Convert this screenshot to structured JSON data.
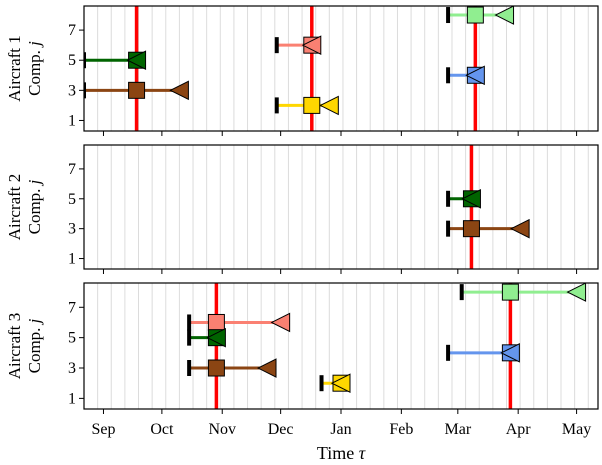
{
  "chart_data": {
    "type": "gantt-scatter",
    "xlabel": "Time τ",
    "x_ticks": [
      "Sep",
      "Oct",
      "Nov",
      "Dec",
      "Jan",
      "Feb",
      "Mar",
      "Apr",
      "May"
    ],
    "x_range": [
      "Aug 22",
      "May 12"
    ],
    "y_ticks": [
      1,
      3,
      5,
      7
    ],
    "y_range": [
      0.3,
      8.6
    ],
    "grid": "vertical-weekly",
    "colors": {
      "comp_2": "#ffd700",
      "comp_3": "#8b4513",
      "comp_4": "#6495ed",
      "comp_5": "#006400",
      "comp_6": "#fa8072",
      "comp_8": "#90ee90",
      "maintenance_line": "#ff0000"
    },
    "panels": [
      {
        "ylabel_line1": "Aircraft 1",
        "ylabel_line2": "Comp. j",
        "maintenance": [
          "Sep 18",
          "Dec 17",
          "Mar 10"
        ],
        "components": [
          {
            "j": 5,
            "start": "Aug 22",
            "replace": "Sep 18",
            "limit": "Sep 18"
          },
          {
            "j": 3,
            "start": "Aug 22",
            "replace": "Sep 18",
            "limit": "Oct 10"
          },
          {
            "j": 6,
            "start": "Nov 29",
            "replace": "Dec 17",
            "limit": "Dec 17"
          },
          {
            "j": 2,
            "start": "Nov 29",
            "replace": "Dec 17",
            "limit": "Dec 26"
          },
          {
            "j": 8,
            "start": "Feb 25",
            "replace": "Mar 10",
            "limit": "Mar 25"
          },
          {
            "j": 4,
            "start": "Feb 25",
            "replace": "Mar 10",
            "limit": "Mar 10"
          }
        ]
      },
      {
        "ylabel_line1": "Aircraft 2",
        "ylabel_line2": "Comp. j",
        "maintenance": [
          "Mar 8"
        ],
        "components": [
          {
            "j": 5,
            "start": "Feb 25",
            "replace": "Mar 8",
            "limit": "Mar 8"
          },
          {
            "j": 3,
            "start": "Feb 25",
            "replace": "Mar 8",
            "limit": "Apr 2"
          }
        ]
      },
      {
        "ylabel_line1": "Aircraft 3",
        "ylabel_line2": "Comp. j",
        "maintenance": [
          "Oct 29",
          "Mar 28"
        ],
        "components": [
          {
            "j": 6,
            "start": "Oct 15",
            "replace": "Oct 29",
            "limit": "Dec 1"
          },
          {
            "j": 5,
            "start": "Oct 15",
            "replace": "Oct 29",
            "limit": "Oct 29"
          },
          {
            "j": 3,
            "start": "Oct 15",
            "replace": "Oct 29",
            "limit": "Nov 24"
          },
          {
            "j": 2,
            "start": "Dec 22",
            "replace": "Jan 1",
            "limit": "Jan 1"
          },
          {
            "j": 8,
            "start": "Mar 3",
            "replace": "Mar 28",
            "limit": "May 1"
          },
          {
            "j": 4,
            "start": "Feb 25",
            "replace": "Mar 28",
            "limit": "Mar 28"
          }
        ]
      }
    ]
  }
}
